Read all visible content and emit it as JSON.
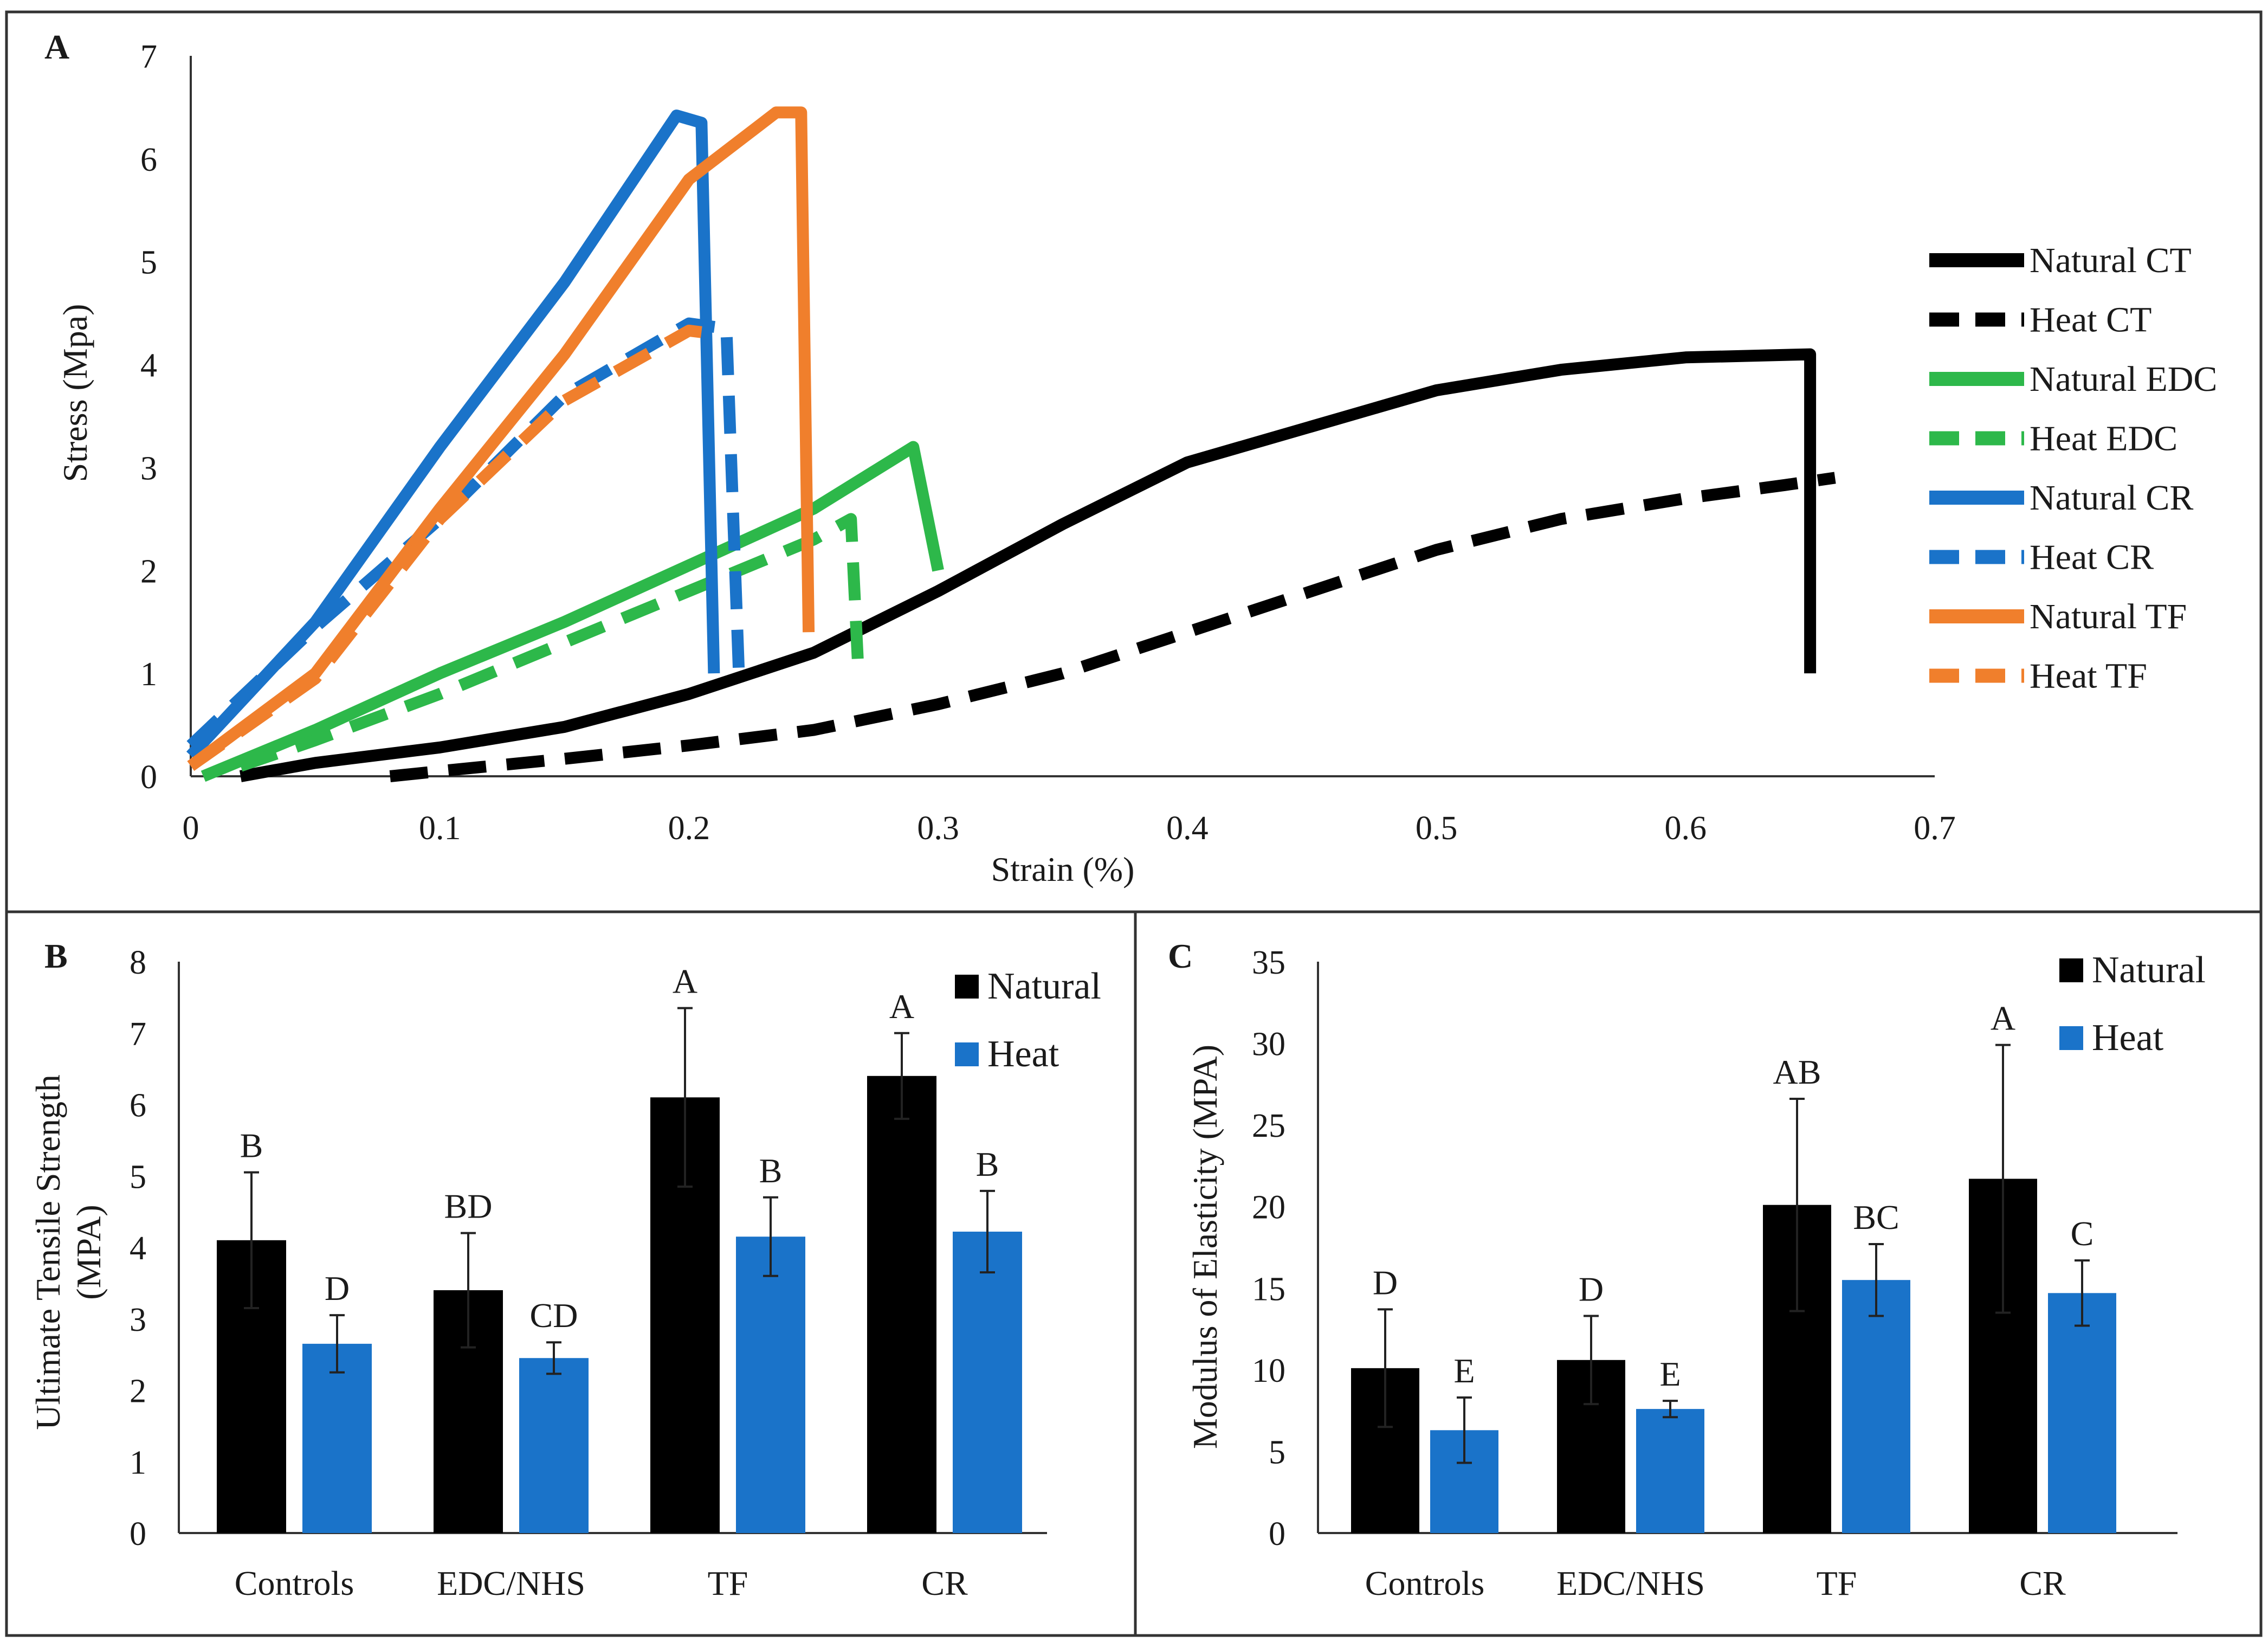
{
  "colors": {
    "black": "#000000",
    "green": "#2db84a",
    "blue": "#1a73c9",
    "orange": "#f07f2c",
    "bar_blue": "#1a73c9",
    "frame": "#333333"
  },
  "chart_data": [
    {
      "panel": "A",
      "type": "line",
      "xlabel": "Strain (%)",
      "ylabel": "Stress (Mpa)",
      "xlim": [
        0,
        0.7
      ],
      "ylim": [
        0,
        7
      ],
      "xticks": [
        "0",
        "0.1",
        "0.2",
        "0.3",
        "0.4",
        "0.5",
        "0.6",
        "0.7"
      ],
      "yticks": [
        "0",
        "1",
        "2",
        "3",
        "4",
        "5",
        "6",
        "7"
      ],
      "legend_position": "right",
      "series": [
        {
          "name": "Natural CT",
          "color": "#000000",
          "dash": false,
          "points": [
            [
              0.02,
              0
            ],
            [
              0.05,
              0.13
            ],
            [
              0.1,
              0.28
            ],
            [
              0.15,
              0.48
            ],
            [
              0.2,
              0.8
            ],
            [
              0.25,
              1.2
            ],
            [
              0.3,
              1.8
            ],
            [
              0.35,
              2.45
            ],
            [
              0.4,
              3.05
            ],
            [
              0.45,
              3.4
            ],
            [
              0.5,
              3.75
            ],
            [
              0.55,
              3.95
            ],
            [
              0.6,
              4.07
            ],
            [
              0.65,
              4.1
            ],
            [
              0.65,
              1.0
            ]
          ]
        },
        {
          "name": "Heat CT",
          "color": "#000000",
          "dash": true,
          "points": [
            [
              0.08,
              0
            ],
            [
              0.1,
              0.05
            ],
            [
              0.15,
              0.17
            ],
            [
              0.2,
              0.3
            ],
            [
              0.25,
              0.45
            ],
            [
              0.3,
              0.7
            ],
            [
              0.35,
              1.0
            ],
            [
              0.4,
              1.4
            ],
            [
              0.45,
              1.8
            ],
            [
              0.5,
              2.2
            ],
            [
              0.55,
              2.5
            ],
            [
              0.6,
              2.7
            ],
            [
              0.64,
              2.83
            ],
            [
              0.66,
              2.9
            ]
          ]
        },
        {
          "name": "Natural EDC",
          "color": "#2db84a",
          "dash": false,
          "points": [
            [
              0.005,
              0
            ],
            [
              0.05,
              0.45
            ],
            [
              0.1,
              1.0
            ],
            [
              0.15,
              1.5
            ],
            [
              0.2,
              2.05
            ],
            [
              0.25,
              2.6
            ],
            [
              0.29,
              3.2
            ],
            [
              0.3,
              2.0
            ]
          ]
        },
        {
          "name": "Heat EDC",
          "color": "#2db84a",
          "dash": true,
          "points": [
            [
              0.02,
              0.1
            ],
            [
              0.05,
              0.35
            ],
            [
              0.1,
              0.8
            ],
            [
              0.15,
              1.3
            ],
            [
              0.2,
              1.8
            ],
            [
              0.25,
              2.3
            ],
            [
              0.265,
              2.5
            ],
            [
              0.268,
              1.0
            ]
          ]
        },
        {
          "name": "Natural CR",
          "color": "#1a73c9",
          "dash": false,
          "points": [
            [
              0,
              0.2
            ],
            [
              0.05,
              1.5
            ],
            [
              0.1,
              3.2
            ],
            [
              0.15,
              4.8
            ],
            [
              0.195,
              6.42
            ],
            [
              0.205,
              6.35
            ],
            [
              0.21,
              1.0
            ]
          ]
        },
        {
          "name": "Heat CR",
          "color": "#1a73c9",
          "dash": true,
          "points": [
            [
              0,
              0.3
            ],
            [
              0.05,
              1.45
            ],
            [
              0.1,
              2.5
            ],
            [
              0.15,
              3.7
            ],
            [
              0.2,
              4.4
            ],
            [
              0.215,
              4.35
            ],
            [
              0.22,
              1.0
            ]
          ]
        },
        {
          "name": "Natural TF",
          "color": "#f07f2c",
          "dash": false,
          "points": [
            [
              0,
              0.1
            ],
            [
              0.05,
              1.0
            ],
            [
              0.1,
              2.6
            ],
            [
              0.15,
              4.1
            ],
            [
              0.2,
              5.8
            ],
            [
              0.235,
              6.45
            ],
            [
              0.245,
              6.45
            ],
            [
              0.248,
              1.4
            ]
          ]
        },
        {
          "name": "Heat TF",
          "color": "#f07f2c",
          "dash": true,
          "points": [
            [
              0,
              0.1
            ],
            [
              0.05,
              0.95
            ],
            [
              0.1,
              2.5
            ],
            [
              0.15,
              3.65
            ],
            [
              0.2,
              4.33
            ],
            [
              0.21,
              4.3
            ]
          ]
        }
      ]
    },
    {
      "panel": "B",
      "type": "bar",
      "ylabel_line1": "Ultimate  Tensile  Strength",
      "ylabel_line2": "(MPA)",
      "ylim": [
        0,
        8
      ],
      "yticks": [
        "0",
        "1",
        "2",
        "3",
        "4",
        "5",
        "6",
        "7",
        "8"
      ],
      "categories": [
        "Controls",
        "EDC/NHS",
        "TF",
        "CR"
      ],
      "legend_position": "top-right",
      "series": [
        {
          "name": "Natural",
          "color": "#000000",
          "values": [
            4.1,
            3.4,
            6.1,
            6.4
          ],
          "errors": [
            0.95,
            0.8,
            1.25,
            0.6
          ],
          "labels": [
            "B",
            "BD",
            "A",
            "A"
          ]
        },
        {
          "name": "Heat",
          "color": "#1a73c9",
          "values": [
            2.65,
            2.45,
            4.15,
            4.22
          ],
          "errors": [
            0.4,
            0.22,
            0.55,
            0.57
          ],
          "labels": [
            "D",
            "CD",
            "B",
            "B"
          ]
        }
      ]
    },
    {
      "panel": "C",
      "type": "bar",
      "ylabel": "Modulus  of  Elasticity  (MPA)",
      "ylim": [
        0,
        35
      ],
      "yticks": [
        "0",
        "5",
        "10",
        "15",
        "20",
        "25",
        "30",
        "35"
      ],
      "categories": [
        "Controls",
        "EDC/NHS",
        "TF",
        "CR"
      ],
      "legend_position": "top-right",
      "series": [
        {
          "name": "Natural",
          "color": "#000000",
          "values": [
            10.1,
            10.6,
            20.1,
            21.7
          ],
          "errors": [
            3.6,
            2.7,
            6.5,
            8.2
          ],
          "labels": [
            "D",
            "D",
            "AB",
            "A"
          ]
        },
        {
          "name": "Heat",
          "color": "#1a73c9",
          "values": [
            6.3,
            7.6,
            15.5,
            14.7
          ],
          "errors": [
            2.0,
            0.5,
            2.2,
            2.0
          ],
          "labels": [
            "E",
            "E",
            "BC",
            "C"
          ]
        }
      ]
    }
  ]
}
